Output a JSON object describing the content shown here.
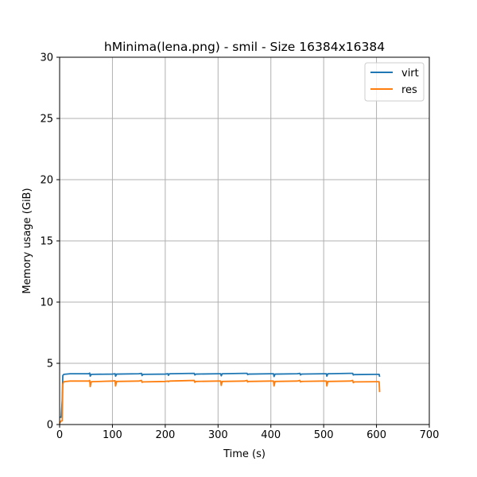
{
  "chart_data": {
    "type": "line",
    "title": "hMinima(lena.png) - smil - Size 16384x16384",
    "xlabel": "Time (s)",
    "ylabel": "Memory usage (GiB)",
    "xlim": [
      0,
      700
    ],
    "ylim": [
      0,
      30
    ],
    "xticks": [
      0,
      100,
      200,
      300,
      400,
      500,
      600,
      700
    ],
    "yticks": [
      0,
      5,
      10,
      15,
      20,
      25,
      30
    ],
    "grid": true,
    "legend_position": "top-right",
    "series": [
      {
        "name": "virt",
        "color": "#1f77b4",
        "x": [
          0,
          3,
          5,
          6,
          8,
          20,
          55,
          57,
          58,
          60,
          100,
          105,
          106,
          108,
          150,
          155,
          156,
          158,
          200,
          205,
          206,
          208,
          255,
          256,
          258,
          300,
          305,
          306,
          308,
          350,
          355,
          356,
          358,
          400,
          405,
          406,
          408,
          450,
          455,
          456,
          458,
          500,
          505,
          506,
          508,
          550,
          555,
          556,
          558,
          600,
          605,
          606
        ],
        "y": [
          0.6,
          0.6,
          2.0,
          4.0,
          4.1,
          4.15,
          4.15,
          4.2,
          3.95,
          4.1,
          4.12,
          4.15,
          3.95,
          4.12,
          4.15,
          4.18,
          4.0,
          4.1,
          4.12,
          4.15,
          4.02,
          4.15,
          4.18,
          4.05,
          4.12,
          4.15,
          4.15,
          3.98,
          4.15,
          4.18,
          4.18,
          4.08,
          4.12,
          4.15,
          4.15,
          3.92,
          4.12,
          4.15,
          4.18,
          4.05,
          4.12,
          4.15,
          4.15,
          3.95,
          4.15,
          4.18,
          4.18,
          4.05,
          4.08,
          4.1,
          4.1,
          3.9
        ]
      },
      {
        "name": "res",
        "color": "#ff7f0e",
        "x": [
          0,
          3,
          5,
          6,
          8,
          20,
          55,
          57,
          58,
          60,
          100,
          105,
          106,
          108,
          150,
          155,
          156,
          158,
          200,
          205,
          206,
          208,
          255,
          256,
          258,
          300,
          305,
          306,
          308,
          350,
          355,
          356,
          358,
          400,
          405,
          406,
          408,
          450,
          455,
          456,
          458,
          500,
          505,
          506,
          508,
          550,
          555,
          556,
          558,
          600,
          605,
          606
        ],
        "y": [
          0.1,
          0.3,
          0.3,
          3.3,
          3.5,
          3.55,
          3.55,
          3.6,
          3.1,
          3.5,
          3.55,
          3.58,
          3.15,
          3.52,
          3.55,
          3.6,
          3.45,
          3.48,
          3.52,
          3.55,
          3.5,
          3.55,
          3.6,
          3.45,
          3.52,
          3.55,
          3.55,
          3.2,
          3.52,
          3.55,
          3.6,
          3.48,
          3.52,
          3.55,
          3.55,
          3.15,
          3.52,
          3.55,
          3.6,
          3.48,
          3.52,
          3.55,
          3.55,
          3.15,
          3.52,
          3.55,
          3.6,
          3.42,
          3.48,
          3.5,
          3.5,
          2.65
        ]
      }
    ]
  }
}
